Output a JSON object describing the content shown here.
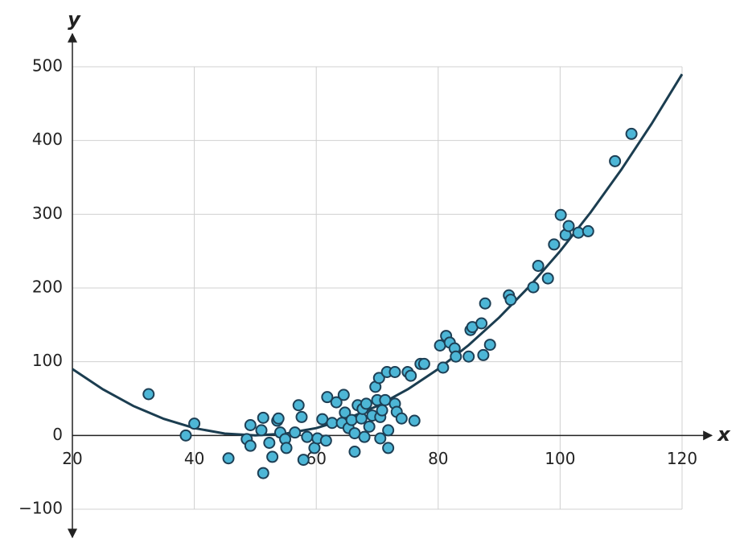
{
  "chart_data": {
    "type": "scatter",
    "x_label": "x",
    "y_label": "y",
    "xlim": [
      20,
      120
    ],
    "ylim": [
      -100,
      500
    ],
    "xticks": [
      20,
      40,
      60,
      80,
      100,
      120
    ],
    "yticks": [
      {
        "value": -100,
        "label": "−100"
      },
      0,
      100,
      200,
      300,
      400,
      500
    ],
    "grid": true,
    "series": [
      {
        "type": "scatter",
        "color": "#4db6d6",
        "edge": "#1d3f55",
        "x": [
          32.5,
          38.6,
          40,
          45.6,
          48.6,
          49.2,
          49.2,
          51,
          51.3,
          51.3,
          52.3,
          52.8,
          53.6,
          53.8,
          54.1,
          54.9,
          55.1,
          56.5,
          57.1,
          57.6,
          57.9,
          58.5,
          59.7,
          60.2,
          61,
          61.6,
          61.8,
          62.6,
          63.3,
          64.2,
          64.5,
          64.7,
          65.3,
          65.8,
          66.3,
          66.3,
          66.8,
          67.4,
          67.6,
          67.9,
          68.2,
          68.7,
          69.2,
          69.7,
          70,
          70.3,
          70.5,
          70.5,
          70.8,
          71.3,
          71.6,
          71.8,
          71.8,
          72.9,
          72.9,
          73.2,
          74,
          75,
          75.5,
          76.1,
          77.1,
          77.7,
          80.3,
          80.8,
          81.3,
          81.9,
          82.7,
          82.9,
          85,
          85.3,
          85.6,
          87.1,
          87.4,
          87.7,
          88.5,
          91.6,
          91.9,
          95.6,
          96.4,
          98,
          99,
          100.1,
          100.9,
          101.4,
          103,
          104.6,
          109,
          111.7
        ],
        "values": [
          56,
          0,
          16,
          -31,
          -5,
          14,
          -14,
          7,
          24,
          -51,
          -10,
          -29,
          20,
          23,
          4,
          -5,
          -17,
          4,
          41,
          25,
          -33,
          -2,
          -17,
          -4,
          22,
          -7,
          52,
          17,
          45,
          17,
          55,
          31,
          10,
          21,
          -22,
          3,
          41,
          23,
          36,
          -2,
          43,
          12,
          27,
          66,
          48,
          78,
          -4,
          25,
          34,
          48,
          86,
          -17,
          7,
          86,
          43,
          32,
          23,
          86,
          81,
          20,
          97,
          97,
          122,
          92,
          135,
          126,
          118,
          107,
          107,
          143,
          147,
          152,
          109,
          179,
          123,
          190,
          184,
          201,
          230,
          213,
          259,
          299,
          272,
          284,
          275,
          277,
          372,
          409
        ]
      },
      {
        "type": "line",
        "color": "#1b3d50",
        "x": [
          20,
          25,
          30,
          35,
          40,
          45,
          50,
          55,
          60,
          65,
          70,
          75,
          80,
          85,
          90,
          95,
          100,
          105,
          110,
          115,
          120
        ],
        "values": [
          90,
          62.5,
          40,
          22.5,
          10,
          2.5,
          0,
          2.5,
          10,
          22.5,
          40,
          62.5,
          90,
          122.5,
          160,
          202.5,
          250,
          302.5,
          360,
          422.5,
          490
        ]
      }
    ]
  }
}
